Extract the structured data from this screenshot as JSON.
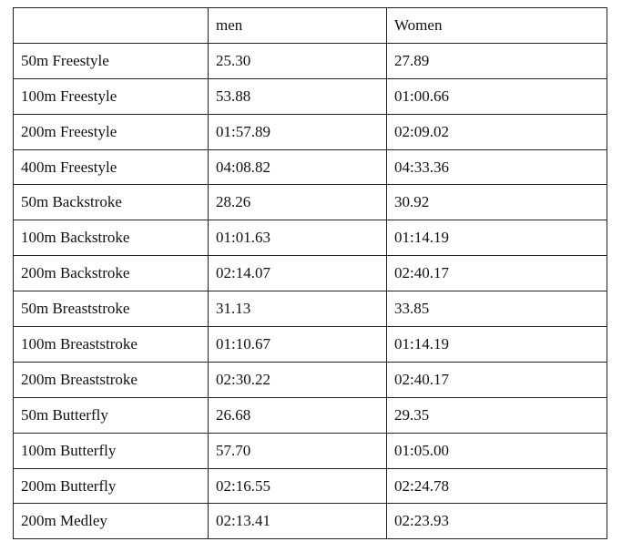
{
  "table": {
    "headers": [
      "",
      "men",
      "Women"
    ],
    "rows": [
      [
        "50m Freestyle",
        "25.30",
        "27.89"
      ],
      [
        "100m Freestyle",
        "53.88",
        "01:00.66"
      ],
      [
        "200m Freestyle",
        "01:57.89",
        "02:09.02"
      ],
      [
        "400m Freestyle",
        "04:08.82",
        "04:33.36"
      ],
      [
        "50m Backstroke",
        "28.26",
        "30.92"
      ],
      [
        "100m Backstroke",
        "01:01.63",
        "01:14.19"
      ],
      [
        "200m Backstroke",
        "02:14.07",
        "02:40.17"
      ],
      [
        "50m Breaststroke",
        "31.13",
        "33.85"
      ],
      [
        "100m Breaststroke",
        "01:10.67",
        "01:14.19"
      ],
      [
        "200m Breaststroke",
        "02:30.22",
        "02:40.17"
      ],
      [
        "50m Butterfly",
        "26.68",
        "29.35"
      ],
      [
        "100m Butterfly",
        "57.70",
        "01:05.00"
      ],
      [
        "200m Butterfly",
        "02:16.55",
        "02:24.78"
      ],
      [
        "200m Medley",
        "02:13.41",
        "02:23.93"
      ]
    ]
  }
}
